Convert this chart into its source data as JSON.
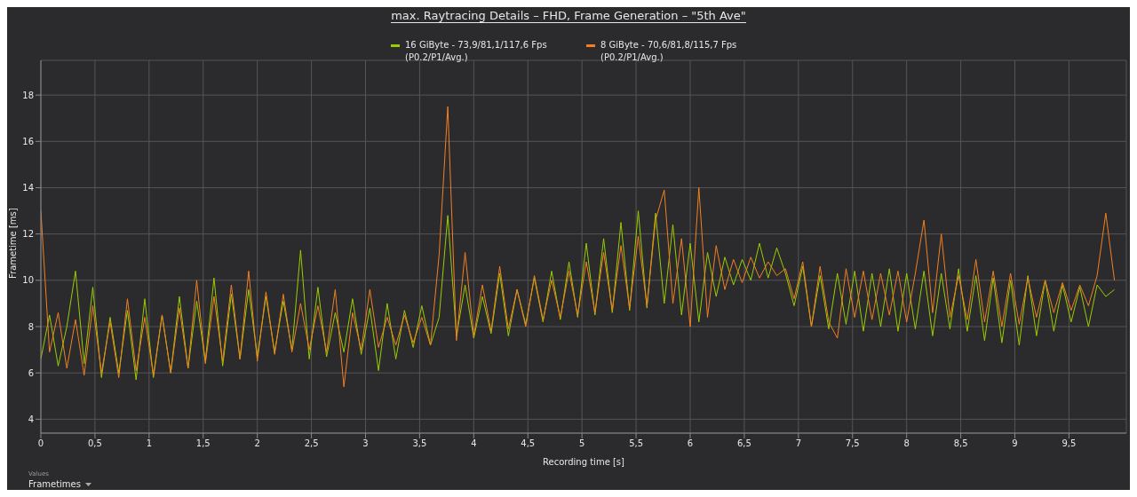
{
  "chart_data": {
    "type": "line",
    "title": "max. Raytracing Details – FHD, Frame Generation – \"5th Ave\"",
    "xlabel": "Recording time [s]",
    "ylabel": "Frametime [ms]",
    "annotations": [
      "Values",
      "Frametimes"
    ],
    "x": [
      0,
      0.08,
      0.16,
      0.24,
      0.32,
      0.4,
      0.48,
      0.56,
      0.64,
      0.72,
      0.8,
      0.88,
      0.96,
      1.04,
      1.12,
      1.2,
      1.28,
      1.36,
      1.44,
      1.52,
      1.6,
      1.68,
      1.76,
      1.84,
      1.92,
      2.0,
      2.08,
      2.16,
      2.24,
      2.32,
      2.4,
      2.48,
      2.56,
      2.64,
      2.72,
      2.8,
      2.88,
      2.96,
      3.04,
      3.12,
      3.2,
      3.28,
      3.36,
      3.44,
      3.52,
      3.6,
      3.68,
      3.76,
      3.84,
      3.92,
      4.0,
      4.08,
      4.16,
      4.24,
      4.32,
      4.4,
      4.48,
      4.56,
      4.64,
      4.72,
      4.8,
      4.88,
      4.96,
      5.04,
      5.12,
      5.2,
      5.28,
      5.36,
      5.44,
      5.52,
      5.6,
      5.68,
      5.76,
      5.84,
      5.92,
      6.0,
      6.08,
      6.16,
      6.24,
      6.32,
      6.4,
      6.48,
      6.56,
      6.64,
      6.72,
      6.8,
      6.88,
      6.96,
      7.04,
      7.12,
      7.2,
      7.28,
      7.36,
      7.44,
      7.52,
      7.6,
      7.68,
      7.76,
      7.84,
      7.92,
      8.0,
      8.08,
      8.16,
      8.24,
      8.32,
      8.4,
      8.48,
      8.56,
      8.64,
      8.72,
      8.8,
      8.88,
      8.96,
      9.04,
      9.12,
      9.2,
      9.28,
      9.36,
      9.44,
      9.52,
      9.6,
      9.68,
      9.76,
      9.84,
      9.92
    ],
    "series": [
      {
        "name": "16 GiByte - 73,9/81,1/117,6 Fps (P0.2/P1/Avg.)",
        "color": "#9acd00",
        "values": [
          6.6,
          8.5,
          6.3,
          8.0,
          10.4,
          6.4,
          9.7,
          5.8,
          8.4,
          6.0,
          8.7,
          5.7,
          9.2,
          5.8,
          8.5,
          6.0,
          9.3,
          6.2,
          9.1,
          6.5,
          10.1,
          6.3,
          9.4,
          6.6,
          9.6,
          6.7,
          9.3,
          6.9,
          9.1,
          7.0,
          11.3,
          6.6,
          9.7,
          6.7,
          8.6,
          6.9,
          9.2,
          6.8,
          8.8,
          6.1,
          9.0,
          6.6,
          8.7,
          7.1,
          8.9,
          7.2,
          8.4,
          12.8,
          7.6,
          9.8,
          7.5,
          9.3,
          7.7,
          10.3,
          7.6,
          9.6,
          8.1,
          10.1,
          8.2,
          10.4,
          8.3,
          10.8,
          8.4,
          11.6,
          8.5,
          11.8,
          8.6,
          12.5,
          8.7,
          13.0,
          8.8,
          12.9,
          9.0,
          12.4,
          8.5,
          11.6,
          8.2,
          11.2,
          9.3,
          11.0,
          9.8,
          10.9,
          10.0,
          11.6,
          10.1,
          11.4,
          10.3,
          8.9,
          10.6,
          8.0,
          10.2,
          7.9,
          10.3,
          8.1,
          10.4,
          7.8,
          10.3,
          8.0,
          10.5,
          7.8,
          10.3,
          7.9,
          10.4,
          7.6,
          10.3,
          7.9,
          10.5,
          7.8,
          10.2,
          7.4,
          10.1,
          7.3,
          10.0,
          7.2,
          10.2,
          7.6,
          10.0,
          7.8,
          9.8,
          8.2,
          9.7,
          8.0,
          9.8,
          9.3,
          9.6
        ]
      },
      {
        "name": "8 GiByte - 70,6/81,8/115,7 Fps (P0.2/P1/Avg.)",
        "color": "#f28022",
        "values": [
          13.0,
          6.9,
          8.6,
          6.2,
          8.3,
          5.9,
          8.9,
          6.0,
          8.2,
          5.8,
          9.2,
          6.1,
          8.4,
          5.9,
          8.5,
          6.0,
          8.8,
          6.2,
          10.0,
          6.4,
          9.3,
          6.5,
          9.8,
          6.6,
          10.4,
          6.5,
          9.5,
          6.8,
          9.4,
          6.9,
          9.0,
          7.0,
          8.9,
          6.9,
          9.6,
          5.4,
          8.6,
          7.0,
          9.6,
          7.1,
          8.4,
          7.2,
          8.5,
          7.3,
          8.4,
          7.2,
          11.1,
          17.5,
          7.4,
          11.2,
          7.6,
          9.8,
          7.8,
          10.6,
          7.9,
          9.6,
          8.0,
          10.2,
          8.3,
          10.0,
          8.4,
          10.4,
          8.5,
          10.8,
          8.6,
          11.2,
          8.7,
          11.5,
          8.8,
          11.9,
          8.9,
          12.6,
          13.9,
          9.0,
          11.8,
          8.0,
          14.0,
          8.4,
          11.5,
          9.6,
          10.9,
          9.9,
          11.0,
          10.1,
          10.8,
          10.2,
          10.5,
          9.2,
          10.8,
          8.0,
          10.6,
          8.2,
          7.5,
          10.5,
          8.4,
          10.4,
          8.3,
          10.3,
          8.5,
          10.4,
          8.2,
          10.3,
          12.6,
          8.6,
          12.0,
          8.4,
          10.2,
          8.3,
          10.9,
          8.2,
          10.4,
          8.0,
          10.3,
          8.1,
          10.1,
          8.4,
          10.0,
          8.6,
          9.9,
          8.7,
          9.8,
          8.9,
          10.2,
          12.9,
          10.0
        ]
      }
    ],
    "xlim": [
      0,
      10.03
    ],
    "ylim": [
      3.4,
      19.5
    ],
    "xticks": [
      0,
      {
        "value": 0.5,
        "label": "0,5"
      },
      1,
      {
        "value": 1.5,
        "label": "1,5"
      },
      2,
      {
        "value": 2.5,
        "label": "2,5"
      },
      3,
      {
        "value": 3.5,
        "label": "3,5"
      },
      4,
      {
        "value": 4.5,
        "label": "4,5"
      },
      5,
      {
        "value": 5.5,
        "label": "5,5"
      },
      6,
      {
        "value": 6.5,
        "label": "6,5"
      },
      7,
      {
        "value": 7.5,
        "label": "7,5"
      },
      8,
      {
        "value": 8.5,
        "label": "8,5"
      },
      9,
      {
        "value": 9.5,
        "label": "9,5"
      }
    ],
    "yticks": [
      4,
      6,
      8,
      10,
      12,
      14,
      16,
      18
    ],
    "grid": true,
    "legend": "top",
    "marker": "none",
    "line_style": "solid"
  }
}
